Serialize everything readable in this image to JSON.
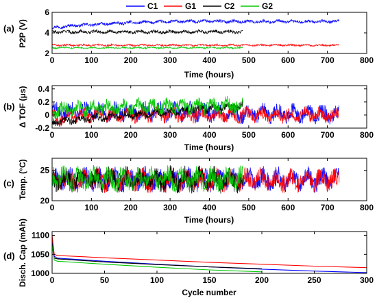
{
  "legend": [
    {
      "name": "C1",
      "color": "#0000ff"
    },
    {
      "name": "G1",
      "color": "#ff0000"
    },
    {
      "name": "C2",
      "color": "#000000"
    },
    {
      "name": "G2",
      "color": "#00c800"
    }
  ],
  "chart_data": [
    {
      "panel": "(a)",
      "type": "line",
      "xlabel": "Time (hours)",
      "ylabel": "P2P (V)",
      "xlim": [
        0,
        800
      ],
      "ylim": [
        2,
        6
      ],
      "xticks": [
        "0",
        "100",
        "200",
        "300",
        "400",
        "500",
        "600",
        "700",
        "800"
      ],
      "yticks": [
        "2",
        "4",
        "6"
      ],
      "grid": false,
      "legend": "top-center",
      "series": [
        {
          "name": "C1",
          "x": [
            0,
            50,
            100,
            200,
            300,
            400,
            500,
            600,
            730
          ],
          "y": [
            4.5,
            4.7,
            4.8,
            5.0,
            5.1,
            5.15,
            5.1,
            5.1,
            5.1
          ],
          "band": 0.2
        },
        {
          "name": "G1",
          "x": [
            0,
            100,
            200,
            300,
            400,
            500,
            600,
            730
          ],
          "y": [
            2.8,
            2.8,
            2.8,
            2.8,
            2.8,
            2.8,
            2.8,
            2.8
          ],
          "band": 0.12
        },
        {
          "name": "C2",
          "x": [
            0,
            100,
            200,
            300,
            400,
            485
          ],
          "y": [
            4.1,
            4.1,
            4.1,
            4.1,
            4.1,
            4.1
          ],
          "band": 0.22
        },
        {
          "name": "G2",
          "x": [
            0,
            100,
            200,
            300,
            400,
            485
          ],
          "y": [
            2.55,
            2.55,
            2.55,
            2.55,
            2.55,
            2.55
          ],
          "band": 0.1
        }
      ]
    },
    {
      "panel": "(b)",
      "type": "line",
      "xlabel": "Time (hours)",
      "ylabel": "Δ TOF (μs)",
      "xlim": [
        0,
        800
      ],
      "ylim": [
        -0.2,
        0.45
      ],
      "xticks": [
        "0",
        "100",
        "200",
        "300",
        "400",
        "500",
        "600",
        "700",
        "800"
      ],
      "yticks": [
        {
          "v": -0.2,
          "t": "-0.2"
        },
        {
          "v": 0,
          "t": "0"
        },
        {
          "v": 0.2,
          "t": "0.2"
        },
        {
          "v": 0.4,
          "t": "0.4"
        }
      ],
      "grid": false,
      "series": [
        {
          "name": "C1",
          "x": [
            0,
            100,
            200,
            300,
            400,
            485,
            600,
            730
          ],
          "y": [
            0.05,
            0.05,
            0.05,
            0.05,
            0.05,
            0.02,
            0.02,
            0.02
          ],
          "band": 0.17
        },
        {
          "name": "G1",
          "x": [
            0,
            100,
            200,
            300,
            400,
            485,
            600,
            730
          ],
          "y": [
            -0.05,
            0.0,
            0.0,
            0.0,
            0.0,
            0.0,
            0.0,
            0.0
          ],
          "band": 0.14
        },
        {
          "name": "C2",
          "x": [
            0,
            100,
            200,
            300,
            400,
            485
          ],
          "y": [
            -0.12,
            -0.05,
            0.0,
            0.05,
            0.1,
            0.15
          ],
          "band": 0.08
        },
        {
          "name": "G2",
          "x": [
            0,
            100,
            200,
            300,
            400,
            485
          ],
          "y": [
            0.08,
            0.1,
            0.12,
            0.13,
            0.14,
            0.15
          ],
          "band": 0.15
        }
      ]
    },
    {
      "panel": "(c)",
      "type": "line",
      "xlabel": "Time (hours)",
      "ylabel": "Temp. (°C)",
      "xlim": [
        0,
        800
      ],
      "ylim": [
        20,
        27
      ],
      "xticks": [
        "0",
        "100",
        "200",
        "300",
        "400",
        "500",
        "600",
        "700",
        "800"
      ],
      "yticks": [
        "20",
        "25"
      ],
      "grid": false,
      "series": [
        {
          "name": "C1",
          "x": [
            0,
            200,
            485,
            730
          ],
          "y": [
            23.5,
            23.5,
            23.5,
            23.5
          ],
          "band": 2.2
        },
        {
          "name": "G1",
          "x": [
            0,
            200,
            485,
            730
          ],
          "y": [
            23.4,
            23.4,
            23.4,
            23.4
          ],
          "band": 2.2
        },
        {
          "name": "C2",
          "x": [
            0,
            200,
            485
          ],
          "y": [
            23.5,
            23.5,
            23.5
          ],
          "band": 2.4
        },
        {
          "name": "G2",
          "x": [
            0,
            200,
            485
          ],
          "y": [
            23.6,
            23.6,
            23.6
          ],
          "band": 2.3
        }
      ]
    },
    {
      "panel": "(d)",
      "type": "line",
      "xlabel": "Cycle number",
      "ylabel": "Disch. Cap (mAh)",
      "xlim": [
        0,
        300
      ],
      "ylim": [
        1000,
        1110
      ],
      "xticks": [
        "0",
        "50",
        "100",
        "150",
        "200",
        "250",
        "300"
      ],
      "yticks": [
        "1000",
        "1050",
        "1100"
      ],
      "grid": false,
      "series": [
        {
          "name": "C1",
          "x": [
            0,
            2,
            5,
            50,
            100,
            150,
            200,
            250,
            300
          ],
          "y": [
            1090,
            1045,
            1040,
            1032,
            1024,
            1017,
            1011,
            1006,
            1002
          ]
        },
        {
          "name": "G1",
          "x": [
            0,
            2,
            5,
            50,
            100,
            150,
            200,
            250,
            300
          ],
          "y": [
            1100,
            1050,
            1047,
            1041,
            1035,
            1029,
            1024,
            1019,
            1015
          ]
        },
        {
          "name": "C2",
          "x": [
            0,
            2,
            5,
            50,
            100,
            150,
            200
          ],
          "y": [
            1080,
            1040,
            1038,
            1030,
            1023,
            1017,
            1012
          ]
        },
        {
          "name": "G2",
          "x": [
            0,
            2,
            5,
            50,
            100,
            150,
            200
          ],
          "y": [
            1075,
            1035,
            1032,
            1024,
            1016,
            1009,
            1004
          ]
        }
      ]
    }
  ]
}
